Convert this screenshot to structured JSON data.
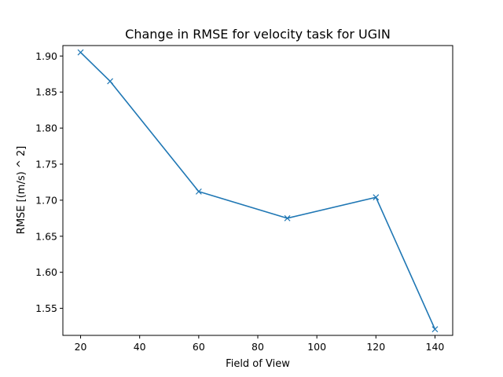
{
  "chart_data": {
    "type": "line",
    "title": "Change in RMSE for velocity task for UGIN",
    "xlabel": "Field of View",
    "ylabel": "RMSE [(m/s) ^ 2]",
    "x": [
      20,
      30,
      60,
      90,
      120,
      140
    ],
    "series": [
      {
        "values": [
          1.905,
          1.865,
          1.712,
          1.675,
          1.704,
          1.521
        ],
        "color": "#1f77b4",
        "marker": "x"
      }
    ],
    "xlim": [
      14,
      146
    ],
    "ylim": [
      1.5125,
      1.9145
    ],
    "xticks": [
      20,
      40,
      60,
      80,
      100,
      120,
      140
    ],
    "xtick_labels": [
      "20",
      "40",
      "60",
      "80",
      "100",
      "120",
      "140"
    ],
    "yticks": [
      1.55,
      1.6,
      1.65,
      1.7,
      1.75,
      1.8,
      1.85,
      1.9
    ],
    "ytick_labels": [
      "1.55",
      "1.60",
      "1.65",
      "1.70",
      "1.75",
      "1.80",
      "1.85",
      "1.90"
    ],
    "grid": false,
    "legend": false
  }
}
